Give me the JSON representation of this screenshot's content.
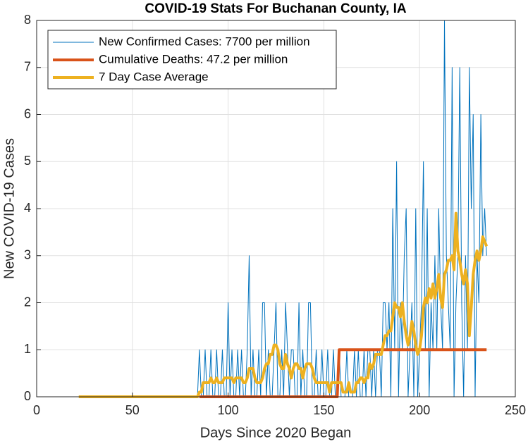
{
  "chart_data": {
    "type": "line",
    "title": "COVID-19 Stats For Buchanan County, IA",
    "xlabel": "Days Since 2020 Began",
    "ylabel": "New COVID-19 Cases",
    "xlim": [
      0,
      250
    ],
    "xticks": [
      0,
      50,
      100,
      150,
      200,
      250
    ],
    "ylim": [
      0,
      8
    ],
    "yticks": [
      0,
      1,
      2,
      3,
      4,
      5,
      6,
      7,
      8
    ],
    "grid": true,
    "legend_location": "northwest",
    "x": [
      22,
      23,
      24,
      25,
      26,
      27,
      28,
      29,
      30,
      31,
      32,
      33,
      34,
      35,
      36,
      37,
      38,
      39,
      40,
      41,
      42,
      43,
      44,
      45,
      46,
      47,
      48,
      49,
      50,
      51,
      52,
      53,
      54,
      55,
      56,
      57,
      58,
      59,
      60,
      61,
      62,
      63,
      64,
      65,
      66,
      67,
      68,
      69,
      70,
      71,
      72,
      73,
      74,
      75,
      76,
      77,
      78,
      79,
      80,
      81,
      82,
      83,
      84,
      85,
      86,
      87,
      88,
      89,
      90,
      91,
      92,
      93,
      94,
      95,
      96,
      97,
      98,
      99,
      100,
      101,
      102,
      103,
      104,
      105,
      106,
      107,
      108,
      109,
      110,
      111,
      112,
      113,
      114,
      115,
      116,
      117,
      118,
      119,
      120,
      121,
      122,
      123,
      124,
      125,
      126,
      127,
      128,
      129,
      130,
      131,
      132,
      133,
      134,
      135,
      136,
      137,
      138,
      139,
      140,
      141,
      142,
      143,
      144,
      145,
      146,
      147,
      148,
      149,
      150,
      151,
      152,
      153,
      154,
      155,
      156,
      157,
      158,
      159,
      160,
      161,
      162,
      163,
      164,
      165,
      166,
      167,
      168,
      169,
      170,
      171,
      172,
      173,
      174,
      175,
      176,
      177,
      178,
      179,
      180,
      181,
      182,
      183,
      184,
      185,
      186,
      187,
      188,
      189,
      190,
      191,
      192,
      193,
      194,
      195,
      196,
      197,
      198,
      199,
      200,
      201,
      202,
      203,
      204,
      205,
      206,
      207,
      208,
      209,
      210,
      211,
      212,
      213,
      214,
      215,
      216,
      217,
      218,
      219,
      220,
      221,
      222,
      223,
      224,
      225,
      226,
      227,
      228,
      229,
      230,
      231,
      232,
      233,
      234,
      235
    ],
    "series": [
      {
        "name": "New Confirmed Cases: 7700 per million",
        "color": "#0072BD",
        "width": 1,
        "values": [
          0,
          0,
          0,
          0,
          0,
          0,
          0,
          0,
          0,
          0,
          0,
          0,
          0,
          0,
          0,
          0,
          0,
          0,
          0,
          0,
          0,
          0,
          0,
          0,
          0,
          0,
          0,
          0,
          0,
          0,
          0,
          0,
          0,
          0,
          0,
          0,
          0,
          0,
          0,
          0,
          0,
          0,
          0,
          0,
          0,
          0,
          0,
          0,
          0,
          0,
          0,
          0,
          0,
          0,
          0,
          0,
          0,
          0,
          0,
          0,
          0,
          0,
          0,
          1,
          0,
          0,
          1,
          0,
          0,
          1,
          0,
          0,
          1,
          0,
          0,
          1,
          0,
          0,
          2,
          0,
          1,
          0,
          0,
          1,
          0,
          1,
          0,
          0,
          1,
          3,
          0,
          1,
          0,
          0,
          1,
          0,
          2,
          2,
          0,
          1,
          0,
          0,
          1,
          2,
          0,
          0,
          1,
          0,
          2,
          1,
          0,
          1,
          1,
          0,
          0,
          2,
          0,
          1,
          0,
          0,
          2,
          2,
          0,
          0,
          1,
          0,
          0,
          1,
          0,
          0,
          1,
          0,
          0,
          1,
          0,
          0,
          1,
          0,
          0,
          0,
          1,
          0,
          0,
          0,
          1,
          0,
          1,
          0,
          0,
          1,
          0,
          1,
          1,
          0,
          1,
          0,
          1,
          1,
          0,
          2,
          2,
          1,
          2,
          0,
          4,
          1,
          5,
          0,
          2,
          1,
          3,
          4,
          0,
          1,
          2,
          0,
          4,
          0,
          1,
          2,
          5,
          1,
          4,
          0,
          2,
          1,
          3,
          1,
          4,
          2,
          1,
          8,
          3,
          2,
          1,
          7,
          0,
          2,
          3,
          7,
          2,
          0,
          3,
          1,
          7,
          4,
          6,
          0,
          3,
          2,
          6,
          3,
          4,
          3
        ]
      },
      {
        "name": "Cumulative Deaths: 47.2 per million",
        "color": "#D95319",
        "width": 4,
        "values": [
          null,
          null,
          null,
          null,
          null,
          null,
          null,
          null,
          null,
          null,
          null,
          null,
          null,
          null,
          null,
          null,
          null,
          null,
          null,
          null,
          null,
          null,
          null,
          null,
          null,
          null,
          null,
          null,
          null,
          null,
          null,
          null,
          null,
          null,
          null,
          null,
          null,
          null,
          null,
          null,
          null,
          null,
          null,
          null,
          null,
          null,
          null,
          null,
          null,
          null,
          null,
          null,
          null,
          null,
          null,
          null,
          null,
          null,
          null,
          null,
          null,
          null,
          null,
          0,
          0,
          0,
          0,
          0,
          0,
          0,
          0,
          0,
          0,
          0,
          0,
          0,
          0,
          0,
          0,
          0,
          0,
          0,
          0,
          0,
          0,
          0,
          0,
          0,
          0,
          0,
          0,
          0,
          0,
          0,
          0,
          0,
          0,
          0,
          0,
          0,
          0,
          0,
          0,
          0,
          0,
          0,
          0,
          0,
          0,
          0,
          0,
          0,
          0,
          0,
          0,
          0,
          0,
          0,
          0,
          0,
          0,
          0,
          0,
          0,
          0,
          0,
          0,
          0,
          0,
          0,
          0,
          0,
          0,
          0,
          0,
          0,
          1,
          1,
          1,
          1,
          1,
          1,
          1,
          1,
          1,
          1,
          1,
          1,
          1,
          1,
          1,
          1,
          1,
          1,
          1,
          1,
          1,
          1,
          1,
          1,
          1,
          1,
          1,
          1,
          1,
          1,
          1,
          1,
          1,
          1,
          1,
          1,
          1,
          1,
          1,
          1,
          1,
          1,
          1,
          1,
          1,
          1,
          1,
          1,
          1,
          1,
          1,
          1,
          1,
          1,
          1,
          1,
          1,
          1,
          1,
          1,
          1,
          1,
          1,
          1,
          1,
          1,
          1,
          1,
          1,
          1,
          1,
          1,
          1,
          1,
          1,
          1,
          1,
          1
        ]
      },
      {
        "name": "7 Day Case Average",
        "color": "#EDB120",
        "width": 4,
        "values": [
          0,
          0,
          0,
          0,
          0,
          0,
          0,
          0,
          0,
          0,
          0,
          0,
          0,
          0,
          0,
          0,
          0,
          0,
          0,
          0,
          0,
          0,
          0,
          0,
          0,
          0,
          0,
          0,
          0,
          0,
          0,
          0,
          0,
          0,
          0,
          0,
          0,
          0,
          0,
          0,
          0,
          0,
          0,
          0,
          0,
          0,
          0,
          0,
          0,
          0,
          0,
          0,
          0,
          0,
          0,
          0,
          0,
          0,
          0,
          0,
          0,
          0,
          0,
          0.1,
          0.1,
          0.3,
          0.3,
          0.3,
          0.3,
          0.4,
          0.3,
          0.3,
          0.4,
          0.3,
          0.3,
          0.3,
          0.4,
          0.4,
          0.4,
          0.4,
          0.4,
          0.3,
          0.4,
          0.4,
          0.4,
          0.4,
          0.3,
          0.3,
          0.4,
          0.6,
          0.6,
          0.6,
          0.4,
          0.3,
          0.3,
          0.3,
          0.4,
          0.6,
          0.7,
          0.7,
          0.9,
          0.9,
          1.1,
          1.1,
          1.0,
          0.7,
          0.6,
          0.6,
          0.9,
          0.7,
          0.6,
          0.4,
          0.6,
          0.7,
          0.7,
          0.6,
          0.6,
          0.4,
          0.6,
          0.7,
          0.7,
          0.7,
          0.6,
          0.4,
          0.3,
          0.3,
          0.3,
          0.3,
          0.3,
          0.3,
          0.3,
          0.1,
          0.3,
          0.3,
          0.3,
          0.3,
          0.3,
          0.3,
          0.1,
          0.1,
          0.1,
          0.3,
          0.1,
          0.1,
          0.1,
          0.3,
          0.3,
          0.4,
          0.4,
          0.3,
          0.4,
          0.4,
          0.7,
          0.6,
          0.7,
          0.9,
          0.9,
          0.9,
          0.9,
          1.1,
          1.3,
          1.3,
          1.4,
          1.4,
          1.7,
          2.0,
          1.9,
          1.9,
          1.7,
          2.0,
          1.6,
          1.3,
          1.1,
          1.3,
          1.6,
          1.4,
          1.1,
          0.9,
          1.0,
          1.3,
          1.9,
          2.1,
          2.0,
          2.3,
          2.1,
          2.4,
          2.1,
          2.3,
          2.6,
          2.1,
          1.9,
          2.6,
          2.7,
          2.9,
          2.9,
          3.0,
          2.7,
          3.9,
          3.1,
          2.9,
          2.6,
          2.4,
          2.7,
          2.4,
          1.3,
          1.9,
          2.6,
          2.9,
          3.1,
          2.9,
          3.1,
          3.4,
          3.3,
          3.2
        ]
      }
    ]
  }
}
